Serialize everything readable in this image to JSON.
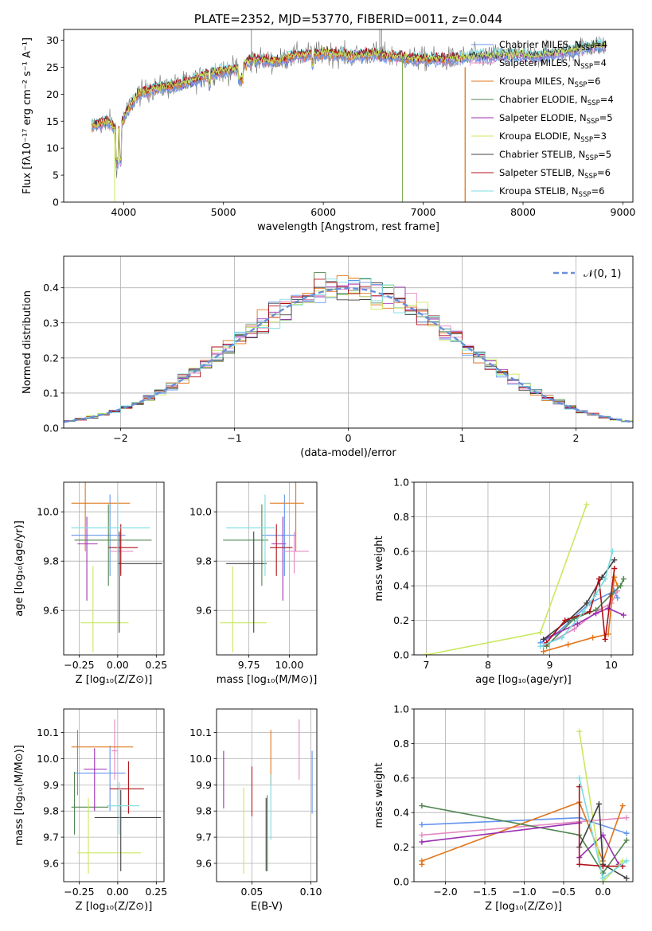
{
  "colors": [
    "#6495ED",
    "#E48AC1",
    "#E0761C",
    "#508550",
    "#9B30B0",
    "#C9E860",
    "#404040",
    "#B01018",
    "#7ADCE0"
  ],
  "chart_data": [
    {
      "id": "spectrum",
      "type": "line",
      "title": "PLATE=2352, MJD=53770, FIBERID=0011, z=0.044",
      "xlabel": "wavelength [Angstrom, rest frame]",
      "ylabel": "Flux [fλ10⁻¹⁷ erg cm⁻² s⁻¹ A⁻¹]",
      "xlim": [
        3400,
        9100
      ],
      "ylim": [
        0,
        32
      ],
      "xticks": [
        4000,
        5000,
        6000,
        7000,
        8000,
        9000
      ],
      "yticks": [
        0,
        5,
        10,
        15,
        20,
        25,
        30
      ],
      "legend_position": "upper-right",
      "series": [
        {
          "name": "Chabrier MILES, N",
          "nssp": "=4"
        },
        {
          "name": "Salpeter MILES, N",
          "nssp": "=4"
        },
        {
          "name": "Kroupa MILES, N",
          "nssp": "=6"
        },
        {
          "name": "Chabrier ELODIE, N",
          "nssp": "=4"
        },
        {
          "name": "Salpeter ELODIE, N",
          "nssp": "=5"
        },
        {
          "name": "Kroupa ELODIE, N",
          "nssp": "=3"
        },
        {
          "name": "Chabrier STELIB, N",
          "nssp": "=5"
        },
        {
          "name": "Salpeter STELIB, N",
          "nssp": "=6"
        },
        {
          "name": "Kroupa STELIB, N",
          "nssp": "=6"
        }
      ],
      "continuum": {
        "x": [
          3680,
          3750,
          3850,
          3950,
          4050,
          4150,
          4300,
          4500,
          4700,
          4900,
          5100,
          5300,
          5500,
          5700,
          5900,
          6100,
          6300,
          6500,
          6700,
          6900,
          7100,
          7300,
          7500,
          7700,
          7900,
          8100,
          8300,
          8500,
          8700,
          8830
        ],
        "y": [
          14,
          14.5,
          15,
          13,
          17.5,
          20,
          21,
          21.5,
          22.5,
          24,
          24.5,
          26.5,
          26,
          27,
          27.5,
          27.5,
          27,
          27.5,
          27,
          26.5,
          26.5,
          26.5,
          27,
          27,
          27.5,
          27,
          27.5,
          28,
          29,
          29
        ]
      }
    },
    {
      "id": "residuals",
      "type": "histogram",
      "xlabel": "(data-model)/error",
      "ylabel": "Normed distribution",
      "xlim": [
        -2.5,
        2.5
      ],
      "ylim": [
        0,
        0.49
      ],
      "xticks": [
        -2,
        -1,
        0,
        1,
        2
      ],
      "yticks": [
        0.0,
        0.1,
        0.2,
        0.3,
        0.4
      ],
      "grid": true,
      "legend": "𝒩(0, 1)",
      "legend_position": "upper-right"
    },
    {
      "id": "age-vs-Z",
      "type": "errorbar",
      "xlabel": "Z [log₁₀(Z/Z⊙)]",
      "ylabel": "age  [log₁₀(age/yr)]",
      "xlim": [
        -0.35,
        0.3
      ],
      "ylim": [
        9.42,
        10.12
      ],
      "xticks": [
        -0.25,
        0.0,
        0.25
      ],
      "yticks": [
        9.6,
        9.8,
        10.0
      ],
      "grid": true,
      "points": [
        {
          "x": -0.05,
          "y": 9.905,
          "ex": [
            -0.3,
            0.05
          ],
          "ey": [
            9.74,
            10.07
          ]
        },
        {
          "x": 0.02,
          "y": 9.84,
          "ex": [
            -0.05,
            0.1
          ],
          "ey": [
            9.75,
            9.92
          ]
        },
        {
          "x": -0.21,
          "y": 10.035,
          "ex": [
            -0.3,
            0.08
          ],
          "ey": [
            9.84,
            10.12
          ]
        },
        {
          "x": -0.06,
          "y": 9.885,
          "ex": [
            -0.28,
            0.22
          ],
          "ey": [
            9.7,
            10.03
          ]
        },
        {
          "x": -0.2,
          "y": 9.87,
          "ex": [
            -0.26,
            -0.13
          ],
          "ey": [
            9.64,
            9.98
          ]
        },
        {
          "x": -0.16,
          "y": 9.55,
          "ex": [
            -0.24,
            0.07
          ],
          "ey": [
            9.43,
            9.78
          ]
        },
        {
          "x": 0.01,
          "y": 9.79,
          "ex": [
            0.0,
            0.29
          ],
          "ey": [
            9.51,
            9.92
          ]
        },
        {
          "x": 0.02,
          "y": 9.855,
          "ex": [
            -0.06,
            0.13
          ],
          "ey": [
            9.74,
            9.95
          ]
        },
        {
          "x": 0.0,
          "y": 9.935,
          "ex": [
            -0.3,
            0.21
          ],
          "ey": [
            9.74,
            10.07
          ]
        }
      ]
    },
    {
      "id": "age-vs-mass",
      "type": "errorbar",
      "xlabel": "mass [log₁₀(M/M⊙)]",
      "xlim": [
        9.55,
        10.17
      ],
      "ylim": [
        9.42,
        10.12
      ],
      "xticks": [
        9.75,
        10.0
      ],
      "yticks": [
        9.6,
        9.8,
        10.0
      ],
      "grid": true,
      "points": [
        {
          "x": 9.97,
          "y": 9.905,
          "ex": [
            9.83,
            10.04
          ],
          "ey": [
            9.74,
            10.07
          ]
        },
        {
          "x": 10.03,
          "y": 9.84,
          "ex": [
            9.97,
            10.12
          ],
          "ey": [
            9.75,
            9.92
          ]
        },
        {
          "x": 10.04,
          "y": 10.035,
          "ex": [
            9.88,
            10.09
          ],
          "ey": [
            9.84,
            10.12
          ]
        },
        {
          "x": 9.83,
          "y": 9.885,
          "ex": [
            9.59,
            9.87
          ],
          "ey": [
            9.7,
            10.03
          ]
        },
        {
          "x": 9.96,
          "y": 9.87,
          "ex": [
            9.89,
            9.98
          ],
          "ey": [
            9.64,
            9.98
          ]
        },
        {
          "x": 9.65,
          "y": 9.55,
          "ex": [
            9.57,
            9.86
          ],
          "ey": [
            9.43,
            9.78
          ]
        },
        {
          "x": 9.78,
          "y": 9.79,
          "ex": [
            9.61,
            9.86
          ],
          "ey": [
            9.51,
            9.92
          ]
        },
        {
          "x": 9.92,
          "y": 9.855,
          "ex": [
            9.88,
            10.02
          ],
          "ey": [
            9.74,
            9.95
          ]
        },
        {
          "x": 9.85,
          "y": 9.935,
          "ex": [
            9.61,
            9.91
          ],
          "ey": [
            9.74,
            10.07
          ]
        }
      ]
    },
    {
      "id": "mw-vs-age",
      "type": "line",
      "xlabel": "age  [log₁₀(age/yr)]",
      "ylabel": "mass weight",
      "xlim": [
        6.8,
        10.35
      ],
      "ylim": [
        0,
        1.0
      ],
      "xticks": [
        7,
        8,
        9,
        10
      ],
      "yticks": [
        0.0,
        0.2,
        0.4,
        0.6,
        0.8,
        1.0
      ],
      "grid": true,
      "series": [
        {
          "x": [
            8.85,
            9.1,
            9.65,
            10.05,
            10.1
          ],
          "y": [
            0.07,
            0.12,
            0.3,
            0.37,
            0.33
          ]
        },
        {
          "x": [
            8.9,
            9.4,
            9.8,
            10.0,
            10.1
          ],
          "y": [
            0.05,
            0.15,
            0.26,
            0.3,
            0.37
          ]
        },
        {
          "x": [
            8.9,
            9.3,
            9.7,
            9.95,
            10.05,
            10.1
          ],
          "y": [
            0.02,
            0.06,
            0.1,
            0.12,
            0.45,
            0.4
          ]
        },
        {
          "x": [
            8.95,
            9.4,
            9.75,
            10.0,
            10.15,
            10.2
          ],
          "y": [
            0.05,
            0.21,
            0.26,
            0.35,
            0.4,
            0.44
          ]
        },
        {
          "x": [
            8.9,
            9.45,
            9.75,
            9.95,
            10.2
          ],
          "y": [
            0.09,
            0.18,
            0.24,
            0.27,
            0.23
          ]
        },
        {
          "x": [
            7.0,
            8.85,
            9.6
          ],
          "y": [
            0.0,
            0.13,
            0.87
          ]
        },
        {
          "x": [
            8.9,
            9.3,
            9.6,
            9.85,
            10.05
          ],
          "y": [
            0.09,
            0.2,
            0.3,
            0.45,
            0.55
          ]
        },
        {
          "x": [
            8.95,
            9.25,
            9.65,
            9.8,
            9.9,
            10.05
          ],
          "y": [
            0.07,
            0.2,
            0.25,
            0.44,
            0.09,
            0.5
          ]
        },
        {
          "x": [
            8.85,
            9.2,
            9.55,
            9.75,
            9.9,
            10.02
          ],
          "y": [
            0.05,
            0.1,
            0.25,
            0.35,
            0.44,
            0.6
          ]
        }
      ]
    },
    {
      "id": "mass-vs-Z",
      "type": "errorbar",
      "xlabel": "Z [log₁₀(Z/Z⊙)]",
      "ylabel": "mass [log₁₀(M/M⊙)]",
      "xlim": [
        -0.35,
        0.3
      ],
      "ylim": [
        9.53,
        10.19
      ],
      "xticks": [
        -0.25,
        0.0,
        0.25
      ],
      "yticks": [
        9.6,
        9.7,
        9.8,
        9.9,
        10.0,
        10.1
      ],
      "grid": true,
      "points": [
        {
          "x": -0.05,
          "y": 9.945,
          "ex": [
            -0.28,
            0.05
          ],
          "ey": [
            9.8,
            10.05
          ]
        },
        {
          "x": -0.02,
          "y": 10.03,
          "ex": [
            -0.04,
            0.0
          ],
          "ey": [
            9.92,
            10.15
          ]
        },
        {
          "x": -0.26,
          "y": 10.045,
          "ex": [
            -0.3,
            0.1
          ],
          "ey": [
            9.86,
            10.11
          ]
        },
        {
          "x": -0.28,
          "y": 9.815,
          "ex": [
            -0.3,
            -0.06
          ],
          "ey": [
            9.71,
            9.95
          ]
        },
        {
          "x": -0.15,
          "y": 9.96,
          "ex": [
            -0.22,
            -0.07
          ],
          "ey": [
            9.8,
            10.04
          ]
        },
        {
          "x": -0.19,
          "y": 9.64,
          "ex": [
            -0.26,
            0.15
          ],
          "ey": [
            9.56,
            9.85
          ]
        },
        {
          "x": 0.02,
          "y": 9.775,
          "ex": [
            -0.15,
            0.28
          ],
          "ey": [
            9.57,
            9.88
          ]
        },
        {
          "x": 0.07,
          "y": 9.885,
          "ex": [
            -0.05,
            0.17
          ],
          "ey": [
            9.79,
            9.99
          ]
        },
        {
          "x": 0.01,
          "y": 9.82,
          "ex": [
            -0.07,
            0.14
          ],
          "ey": [
            9.71,
            9.91
          ]
        }
      ]
    },
    {
      "id": "mass-vs-EBV",
      "type": "errorbar",
      "xlabel": "E(B-V)",
      "xlim": [
        0.02,
        0.105
      ],
      "ylim": [
        9.53,
        10.19
      ],
      "xticks": [
        0.05,
        0.1
      ],
      "yticks": [
        9.6,
        9.7,
        9.8,
        9.9,
        10.0,
        10.1
      ],
      "grid": true,
      "points": [
        {
          "x": 0.101,
          "y": 9.93,
          "ey": [
            9.79,
            10.03
          ]
        },
        {
          "x": 0.09,
          "y": 10.04,
          "ey": [
            9.92,
            10.15
          ]
        },
        {
          "x": 0.066,
          "y": 10.03,
          "ey": [
            9.9,
            10.11
          ]
        },
        {
          "x": 0.063,
          "y": 9.72,
          "ey": [
            9.57,
            9.86
          ]
        },
        {
          "x": 0.026,
          "y": 9.92,
          "ey": [
            9.81,
            10.03
          ]
        },
        {
          "x": 0.043,
          "y": 9.73,
          "ey": [
            9.56,
            9.89
          ]
        },
        {
          "x": 0.062,
          "y": 9.7,
          "ey": [
            9.57,
            9.85
          ]
        },
        {
          "x": 0.05,
          "y": 9.88,
          "ey": [
            9.78,
            9.97
          ]
        },
        {
          "x": 0.066,
          "y": 9.82,
          "ey": [
            9.69,
            9.94
          ]
        }
      ]
    },
    {
      "id": "mw-vs-Z",
      "type": "line",
      "xlabel": "Z [log₁₀(Z/Z⊙)]",
      "ylabel": "mass weight",
      "xlim": [
        -2.4,
        0.38
      ],
      "ylim": [
        0,
        1.0
      ],
      "xticks": [
        -2.0,
        -1.5,
        -1.0,
        -0.5,
        0.0
      ],
      "yticks": [
        0.0,
        0.2,
        0.4,
        0.6,
        0.8,
        1.0
      ],
      "grid": true,
      "series": [
        {
          "x": [
            -2.3,
            -0.3,
            0.3
          ],
          "y": [
            0.33,
            0.37,
            0.28
          ]
        },
        {
          "x": [
            -2.3,
            0.3
          ],
          "y": [
            0.27,
            0.37
          ]
        },
        {
          "x": [
            -2.3,
            -2.3,
            -0.3,
            0.0,
            0.25
          ],
          "y": [
            0.1,
            0.12,
            0.46,
            0.12,
            0.44
          ]
        },
        {
          "x": [
            -2.3,
            -0.3,
            0.0,
            0.3
          ],
          "y": [
            0.44,
            0.27,
            0.05,
            0.24
          ]
        },
        {
          "x": [
            -2.3,
            -0.3,
            -0.3,
            0.0,
            0.2
          ],
          "y": [
            0.23,
            0.34,
            0.14,
            0.27,
            0.1
          ]
        },
        {
          "x": [
            -0.3,
            0.0,
            0.25
          ],
          "y": [
            0.87,
            0.0,
            0.12
          ]
        },
        {
          "x": [
            -0.3,
            -0.05,
            0.0,
            0.3
          ],
          "y": [
            0.2,
            0.45,
            0.1,
            0.02
          ]
        },
        {
          "x": [
            -0.3,
            -0.3,
            0.0,
            0.25
          ],
          "y": [
            0.55,
            0.1,
            0.09,
            0.09
          ]
        },
        {
          "x": [
            -0.3,
            0.0,
            0.3
          ],
          "y": [
            0.6,
            0.02,
            0.12
          ]
        }
      ]
    }
  ]
}
